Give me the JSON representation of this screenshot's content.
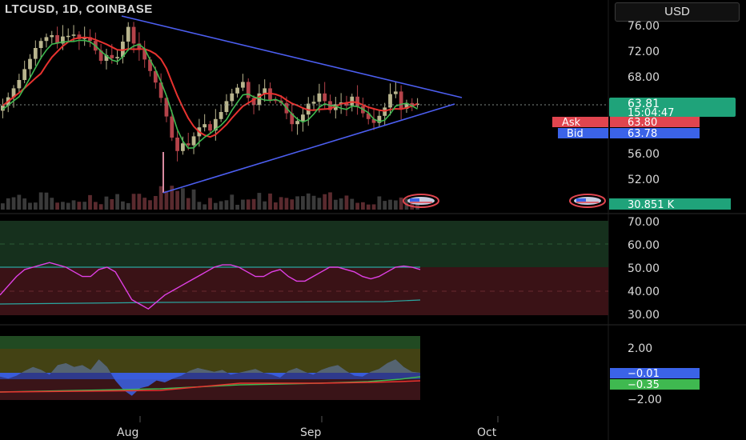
{
  "header": {
    "symbol": "LTCUSD, 1D, COINBASE",
    "currency": "USD"
  },
  "price_axis": {
    "ticks": [
      "76.00",
      "72.00",
      "68.00",
      "56.00",
      "52.00"
    ]
  },
  "rsi_axis": {
    "ticks": [
      "70.00",
      "60.00",
      "50.00",
      "40.00",
      "30.00"
    ]
  },
  "osc_axis": {
    "ticks": [
      "2.00",
      "−2.00"
    ]
  },
  "time_axis": {
    "labels": [
      "Aug",
      "Sep",
      "Oct"
    ]
  },
  "badges": {
    "last_price": "63.81",
    "countdown": "15:04:47",
    "ask_label": "Ask",
    "ask_value": "63.80",
    "bid_label": "Bid",
    "bid_value": "63.78",
    "volume": "30.851 K",
    "osc_blue": "−0.01",
    "osc_green": "−0.35"
  },
  "colors": {
    "up": "#b9b58e",
    "down": "#b5434a",
    "ma_red": "#e8322f",
    "ma_green": "#3fb950",
    "trendline": "#4c5ef0",
    "rsi_line": "#e040e6",
    "last_price": "#1fa37a",
    "ask": "#e0454f",
    "bid": "#3b63e8"
  },
  "chart_data": [
    {
      "type": "candlestick",
      "title": "LTCUSD, 1D, COINBASE",
      "ylim": [
        49.7,
        78.0
      ],
      "x_labels": [
        "Aug",
        "Sep",
        "Oct"
      ],
      "closes": [
        63.5,
        64.8,
        66.2,
        67.5,
        69.2,
        70.8,
        72.5,
        73.6,
        74.2,
        74.5,
        73.2,
        74.3,
        74.4,
        74.6,
        73.9,
        74.2,
        73.6,
        72.1,
        70.5,
        71.4,
        70.9,
        71.1,
        73.5,
        75.8,
        73.2,
        72.2,
        70.7,
        68.9,
        67.1,
        64.7,
        61.8,
        58.5,
        56.4,
        57.6,
        57.3,
        58.7,
        60.1,
        60.6,
        59.6,
        61.4,
        62.5,
        64.2,
        65.4,
        66.3,
        67.2,
        64.7,
        63.6,
        65.4,
        66.2,
        64.4,
        64.3,
        63.9,
        62.3,
        60.6,
        61.1,
        62.1,
        63.8,
        64.1,
        65.4,
        64.2,
        62.8,
        63.7,
        64.0,
        63.5,
        64.9,
        63.4,
        62.3,
        61.4,
        60.8,
        61.9,
        63.2,
        65.3,
        65.7,
        63.0,
        63.9,
        63.6,
        63.8
      ],
      "price_labels": [
        76.0,
        72.0,
        68.0,
        56.0,
        52.0
      ],
      "last_price": 63.81,
      "ask": 63.8,
      "bid": 63.78,
      "volume_last": "30.851 K",
      "indicators": [
        "MA (red)",
        "MA (green)",
        "Triangle trendlines"
      ]
    },
    {
      "type": "line",
      "ylim": [
        30,
        70
      ],
      "ticks": [
        70,
        60,
        50,
        40,
        30
      ],
      "values": [
        38,
        42,
        46,
        49,
        50,
        51,
        52,
        51,
        50,
        48,
        46,
        46,
        49,
        50,
        48,
        42,
        36,
        34,
        32,
        35,
        38,
        40,
        42,
        44,
        46,
        48,
        50,
        51,
        51,
        50,
        48,
        46,
        46,
        48,
        49,
        46,
        44,
        44,
        46,
        48,
        50,
        50,
        49,
        48,
        46,
        45,
        46,
        48,
        50,
        50.5,
        50,
        49
      ]
    },
    {
      "type": "area",
      "ticks": [
        2.0,
        -2.0
      ],
      "last_values": [
        -0.01,
        -0.35
      ],
      "values": [
        -0.4,
        -0.6,
        -0.3,
        0.2,
        0.6,
        0.3,
        -0.2,
        0.8,
        1.0,
        0.6,
        0.8,
        0.3,
        1.4,
        0.6,
        -0.8,
        -1.8,
        -2.4,
        -1.6,
        -1.4,
        -0.8,
        -1.0,
        -0.6,
        -0.3,
        0.2,
        0.5,
        0.3,
        0.1,
        0.3,
        -0.2,
        0.0,
        0.2,
        0.4,
        0.0,
        -0.2,
        -0.5,
        0.2,
        0.5,
        0.1,
        -0.2,
        0.3,
        0.6,
        0.8,
        0.2,
        -0.3,
        -0.4,
        0.1,
        0.4,
        1.0,
        1.4,
        0.6,
        0.1,
        0.0
      ]
    }
  ]
}
